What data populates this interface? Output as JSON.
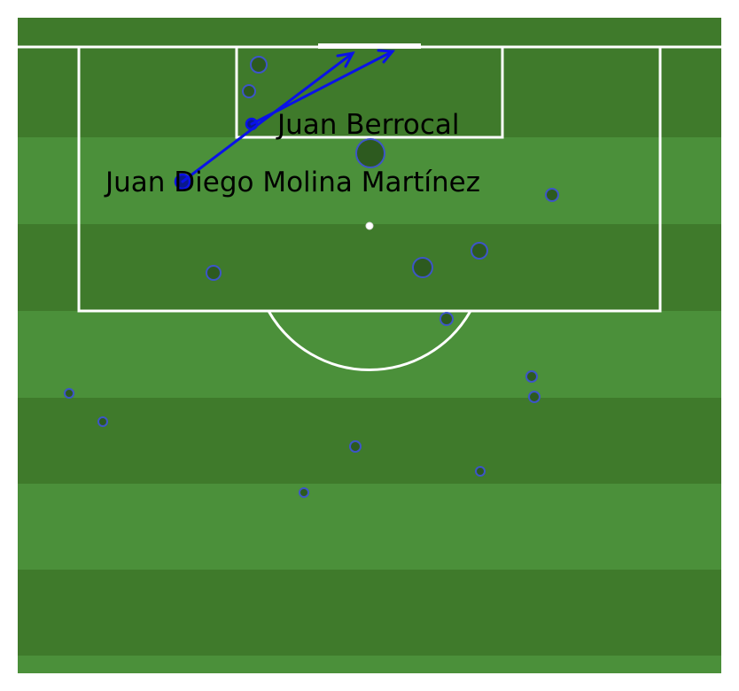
{
  "colors": {
    "stripe_dark": "#3f7a2b",
    "stripe_light": "#4b903a",
    "lines": "#ffffff",
    "marker_fill": "#2d5a1f",
    "marker_edge": "#3d55c8",
    "pass_arrow": "#0a12e8",
    "highlight_fill": "#0a1a8a"
  },
  "players": {
    "passer": {
      "name": "Juan Diego Molina Martínez"
    },
    "receiver": {
      "name": "Juan Berrocal"
    }
  }
}
